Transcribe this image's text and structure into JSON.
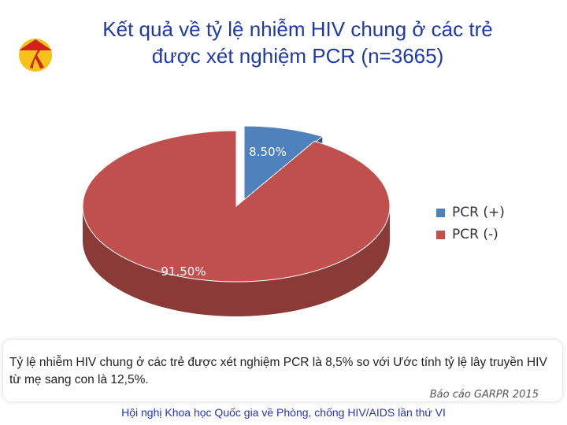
{
  "header": {
    "title_line1": "Kết quả về tỷ lệ nhiễm HIV chung ở các trẻ",
    "title_line2": "được xét nghiệm PCR (n=3665)",
    "logo_icon": "red-ribbon-conical-hat-icon"
  },
  "chart_data": {
    "type": "pie",
    "style": "3d-exploded",
    "categories": [
      "PCR (+)",
      "PCR (-)"
    ],
    "values": [
      8.5,
      91.5
    ],
    "labels": [
      "8.50%",
      "91.50%"
    ],
    "colors": [
      "#4f81bd",
      "#c0504d"
    ],
    "legend_position": "right"
  },
  "note": {
    "text": "Tỷ lệ nhiễm HIV chung ở các trẻ được xét nghiệm PCR  là 8,5% so với Ước tính tỷ lệ lây truyền HIV từ mẹ sang con là 12,5%.",
    "source": "Báo cáo GARPR 2015"
  },
  "footer": {
    "text": "Hội nghị Khoa học Quốc gia về Phòng, chống HIV/AIDS lần thứ VI"
  }
}
